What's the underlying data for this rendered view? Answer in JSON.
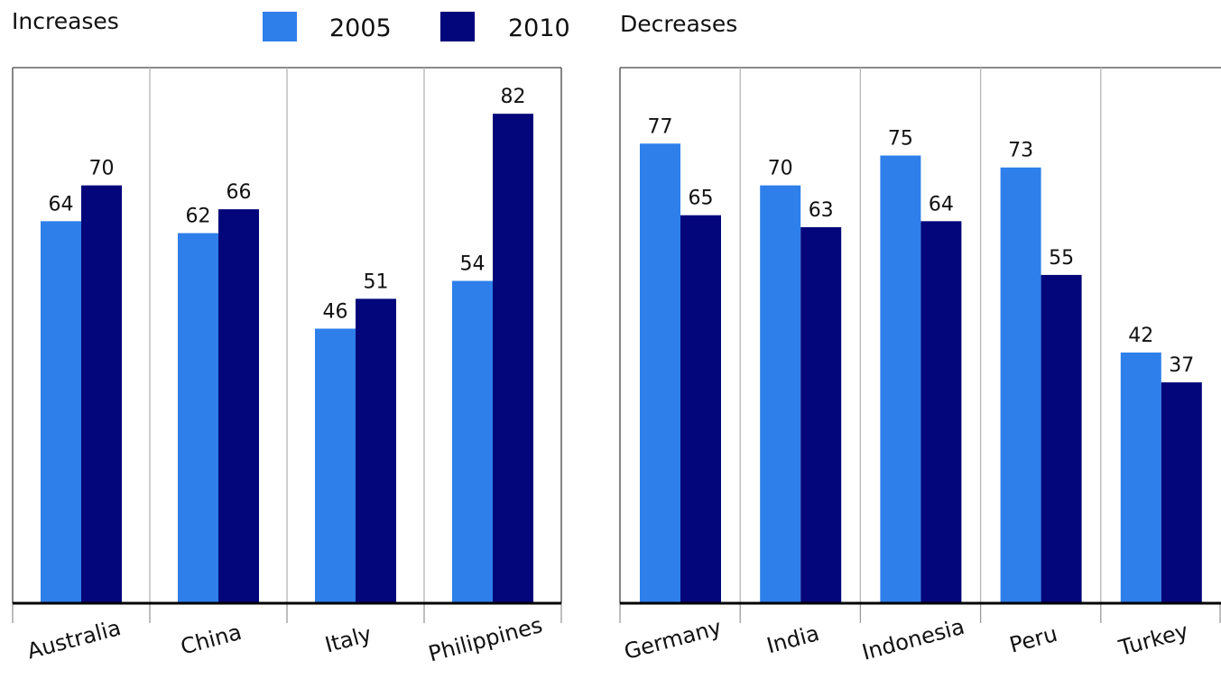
{
  "legend": [
    {
      "label": "2005",
      "color": "#2e7fea"
    },
    {
      "label": "2010",
      "color": "#03057a"
    }
  ],
  "chart_data": [
    {
      "type": "bar",
      "title": "Increases",
      "categories": [
        "Australia",
        "China",
        "Italy",
        "Philippines"
      ],
      "series": [
        {
          "name": "2005",
          "values": [
            64,
            62,
            46,
            54
          ],
          "labels": [
            "64",
            "62",
            "46",
            "54"
          ]
        },
        {
          "name": "2010",
          "values": [
            70,
            66,
            51,
            82
          ],
          "labels": [
            "70",
            "66",
            "51",
            "82"
          ]
        }
      ],
      "ylim": [
        0,
        100
      ],
      "grid": "vertical separators between categories",
      "legend": "top-center"
    },
    {
      "type": "bar",
      "title": "Decreases",
      "categories": [
        "Germany",
        "India",
        "Indonesia",
        "Peru",
        "Turkey"
      ],
      "series": [
        {
          "name": "2005",
          "values": [
            77,
            70,
            75,
            73,
            42
          ],
          "labels": [
            "77",
            "70",
            "75",
            "73",
            "42"
          ]
        },
        {
          "name": "2010",
          "values": [
            65,
            63,
            64,
            55,
            37
          ],
          "labels": [
            "65",
            "63",
            "64",
            "55",
            "37"
          ]
        }
      ],
      "ylim": [
        0,
        100
      ],
      "grid": "vertical separators between categories",
      "legend": "top-center"
    }
  ]
}
